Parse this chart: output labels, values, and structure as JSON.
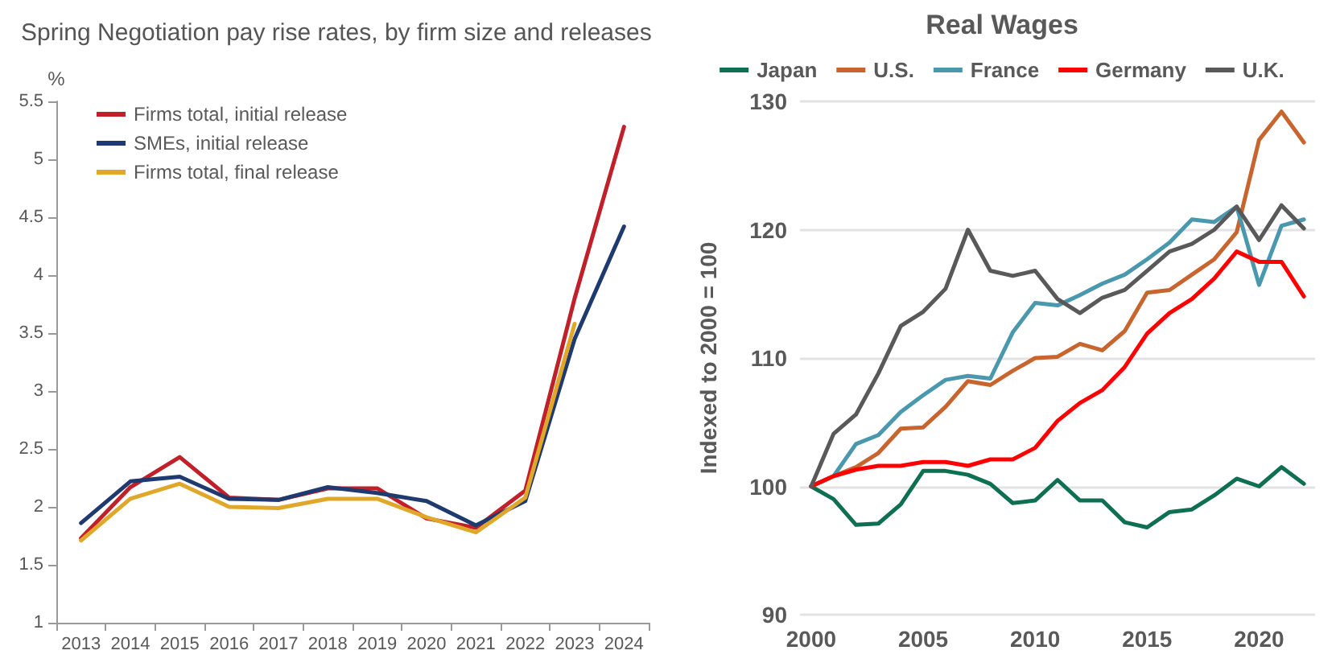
{
  "chart_data": [
    {
      "type": "line",
      "title": "Spring Negotiation pay rise rates, by firm size and releases",
      "ylabel": "%",
      "categories": [
        "2013",
        "2014",
        "2015",
        "2016",
        "2017",
        "2018",
        "2019",
        "2020",
        "2021",
        "2022",
        "2023",
        "2024"
      ],
      "series": [
        {
          "name": "Firms total, initial release",
          "color": "#c0202a",
          "values": [
            1.73,
            2.17,
            2.43,
            2.08,
            2.06,
            2.16,
            2.16,
            1.9,
            1.82,
            2.14,
            3.8,
            5.28
          ]
        },
        {
          "name": "SMEs, initial release",
          "color": "#1f3a6e",
          "values": [
            1.86,
            2.22,
            2.26,
            2.07,
            2.06,
            2.17,
            2.12,
            2.05,
            1.84,
            2.05,
            3.45,
            4.42
          ]
        },
        {
          "name": "Firms total, final release",
          "color": "#e0a82a",
          "values": [
            1.71,
            2.07,
            2.2,
            2.0,
            1.99,
            2.07,
            2.07,
            1.91,
            1.78,
            2.08,
            3.58,
            null
          ]
        }
      ],
      "ylim": [
        1,
        5.5
      ],
      "yticks": [
        1,
        1.5,
        2,
        2.5,
        3,
        3.5,
        4,
        4.5,
        5,
        5.5
      ],
      "grid": false,
      "legend": "top left",
      "marker": "none",
      "line_style": "solid"
    },
    {
      "type": "line",
      "title": "Real Wages",
      "ylabel": "Indexed to 2000 = 100",
      "x": [
        2000,
        2001,
        2002,
        2003,
        2004,
        2005,
        2006,
        2007,
        2008,
        2009,
        2010,
        2011,
        2012,
        2013,
        2014,
        2015,
        2016,
        2017,
        2018,
        2019,
        2020,
        2021,
        2022
      ],
      "series": [
        {
          "name": "Japan",
          "color": "#0e7050",
          "values": [
            100,
            99.0,
            97.0,
            97.1,
            98.6,
            101.2,
            101.2,
            100.9,
            100.2,
            98.7,
            98.9,
            100.5,
            98.9,
            98.9,
            97.2,
            96.8,
            98.0,
            98.2,
            99.3,
            100.6,
            100,
            101.5,
            100.2
          ]
        },
        {
          "name": "U.S.",
          "color": "#c8642d",
          "values": [
            100,
            100.8,
            101.5,
            102.6,
            104.5,
            104.6,
            106.2,
            108.2,
            107.9,
            109.0,
            110.0,
            110.1,
            111.1,
            110.6,
            112.1,
            115.1,
            115.3,
            116.5,
            117.7,
            119.8,
            127.0,
            129.2,
            126.8
          ]
        },
        {
          "name": "France",
          "color": "#4a98ad",
          "values": [
            100,
            100.8,
            103.3,
            104.0,
            105.8,
            107.1,
            108.3,
            108.6,
            108.4,
            112.0,
            114.3,
            114.1,
            114.9,
            115.8,
            116.5,
            117.7,
            119.0,
            120.8,
            120.6,
            121.8,
            115.7,
            120.3,
            120.8
          ]
        },
        {
          "name": "Germany",
          "color": "#ff0000",
          "values": [
            100,
            100.8,
            101.3,
            101.6,
            101.6,
            101.9,
            101.9,
            101.6,
            102.1,
            102.1,
            103.0,
            105.1,
            106.5,
            107.5,
            109.3,
            111.9,
            113.5,
            114.6,
            116.2,
            118.3,
            117.5,
            117.5,
            114.8
          ]
        },
        {
          "name": "U.K.",
          "color": "#595959",
          "values": [
            100,
            104.1,
            105.6,
            108.8,
            112.5,
            113.6,
            115.4,
            120.0,
            116.8,
            116.4,
            116.8,
            114.6,
            113.5,
            114.7,
            115.3,
            116.8,
            118.3,
            118.9,
            120.0,
            121.8,
            119.2,
            121.9,
            120.1
          ]
        }
      ],
      "xlim": [
        1999.5,
        2022.5
      ],
      "xticks": [
        2000,
        2005,
        2010,
        2015,
        2020
      ],
      "ylim": [
        90,
        130
      ],
      "yticks": [
        90,
        100,
        110,
        120,
        130
      ],
      "grid": "y",
      "legend": "top",
      "marker": "none",
      "line_style": "solid"
    }
  ]
}
